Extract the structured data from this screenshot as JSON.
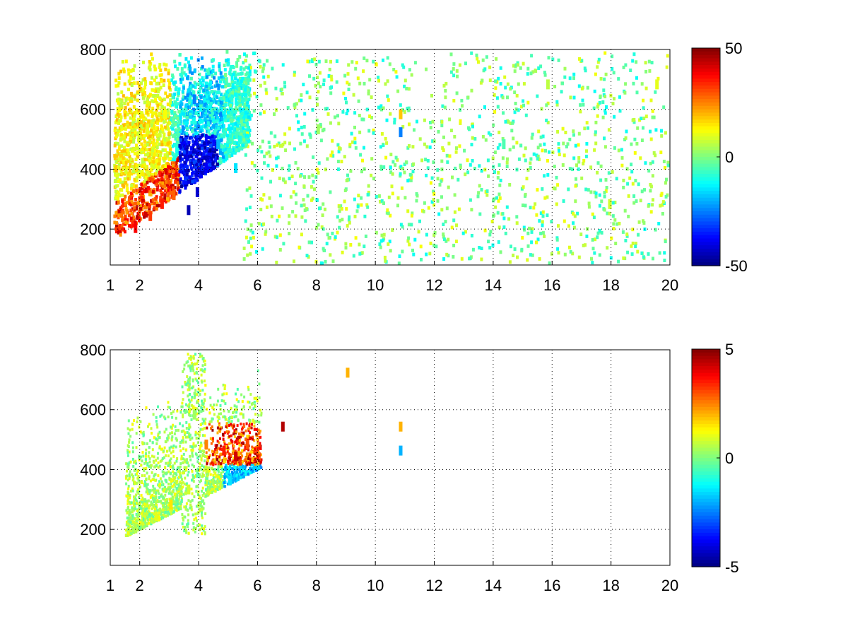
{
  "chart_data": [
    {
      "type": "heatmap",
      "title": "",
      "xlabel": "",
      "ylabel": "",
      "xlim": [
        1,
        20
      ],
      "ylim": [
        80,
        800
      ],
      "x_ticks": [
        1,
        2,
        4,
        6,
        8,
        10,
        12,
        14,
        16,
        18,
        20
      ],
      "y_ticks": [
        200,
        400,
        600,
        800
      ],
      "grid": true,
      "colormap": "jet",
      "colorbar": {
        "range": [
          -50,
          50
        ],
        "ticks": [
          50,
          0,
          -50
        ]
      },
      "cells_sample": [
        {
          "x": 1.8,
          "y": 220,
          "v": 38
        },
        {
          "x": 2.3,
          "y": 260,
          "v": 32
        },
        {
          "x": 2.7,
          "y": 300,
          "v": 35
        },
        {
          "x": 3.1,
          "y": 330,
          "v": 28
        },
        {
          "x": 2.2,
          "y": 550,
          "v": 10
        },
        {
          "x": 2.8,
          "y": 600,
          "v": 12
        },
        {
          "x": 3.6,
          "y": 280,
          "v": -45
        },
        {
          "x": 3.9,
          "y": 340,
          "v": -42
        },
        {
          "x": 4.2,
          "y": 420,
          "v": -38
        },
        {
          "x": 3.8,
          "y": 650,
          "v": -25
        },
        {
          "x": 4.6,
          "y": 500,
          "v": -20
        },
        {
          "x": 5.2,
          "y": 420,
          "v": -15
        },
        {
          "x": 8.0,
          "y": 550,
          "v": 3
        },
        {
          "x": 10.8,
          "y": 540,
          "v": -25
        },
        {
          "x": 10.8,
          "y": 600,
          "v": 18
        },
        {
          "x": 14.3,
          "y": 500,
          "v": -5
        },
        {
          "x": 15.8,
          "y": 700,
          "v": 6
        },
        {
          "x": 17.9,
          "y": 300,
          "v": 8
        },
        {
          "x": 19.5,
          "y": 700,
          "v": 10
        }
      ]
    },
    {
      "type": "heatmap",
      "title": "",
      "xlabel": "",
      "ylabel": "",
      "xlim": [
        1,
        20
      ],
      "ylim": [
        80,
        800
      ],
      "x_ticks": [
        1,
        2,
        4,
        6,
        8,
        10,
        12,
        14,
        16,
        18,
        20
      ],
      "y_ticks": [
        200,
        400,
        600,
        800
      ],
      "grid": true,
      "colormap": "jet",
      "colorbar": {
        "range": [
          -5,
          5
        ],
        "ticks": [
          5,
          0,
          -5
        ]
      },
      "cells_sample": [
        {
          "x": 1.8,
          "y": 220,
          "v": 0.5
        },
        {
          "x": 2.5,
          "y": 260,
          "v": 1
        },
        {
          "x": 3.0,
          "y": 300,
          "v": 1.5
        },
        {
          "x": 3.6,
          "y": 350,
          "v": 0.8
        },
        {
          "x": 3.8,
          "y": 600,
          "v": 0.3
        },
        {
          "x": 4.2,
          "y": 500,
          "v": 2.5
        },
        {
          "x": 4.8,
          "y": 480,
          "v": 3.5
        },
        {
          "x": 5.2,
          "y": 460,
          "v": 4.2
        },
        {
          "x": 5.6,
          "y": 500,
          "v": 3
        },
        {
          "x": 5.0,
          "y": 380,
          "v": -1.5
        },
        {
          "x": 6.8,
          "y": 560,
          "v": 4.5
        },
        {
          "x": 9.0,
          "y": 740,
          "v": 2
        },
        {
          "x": 10.8,
          "y": 560,
          "v": 2
        },
        {
          "x": 10.8,
          "y": 480,
          "v": -2
        }
      ]
    }
  ]
}
